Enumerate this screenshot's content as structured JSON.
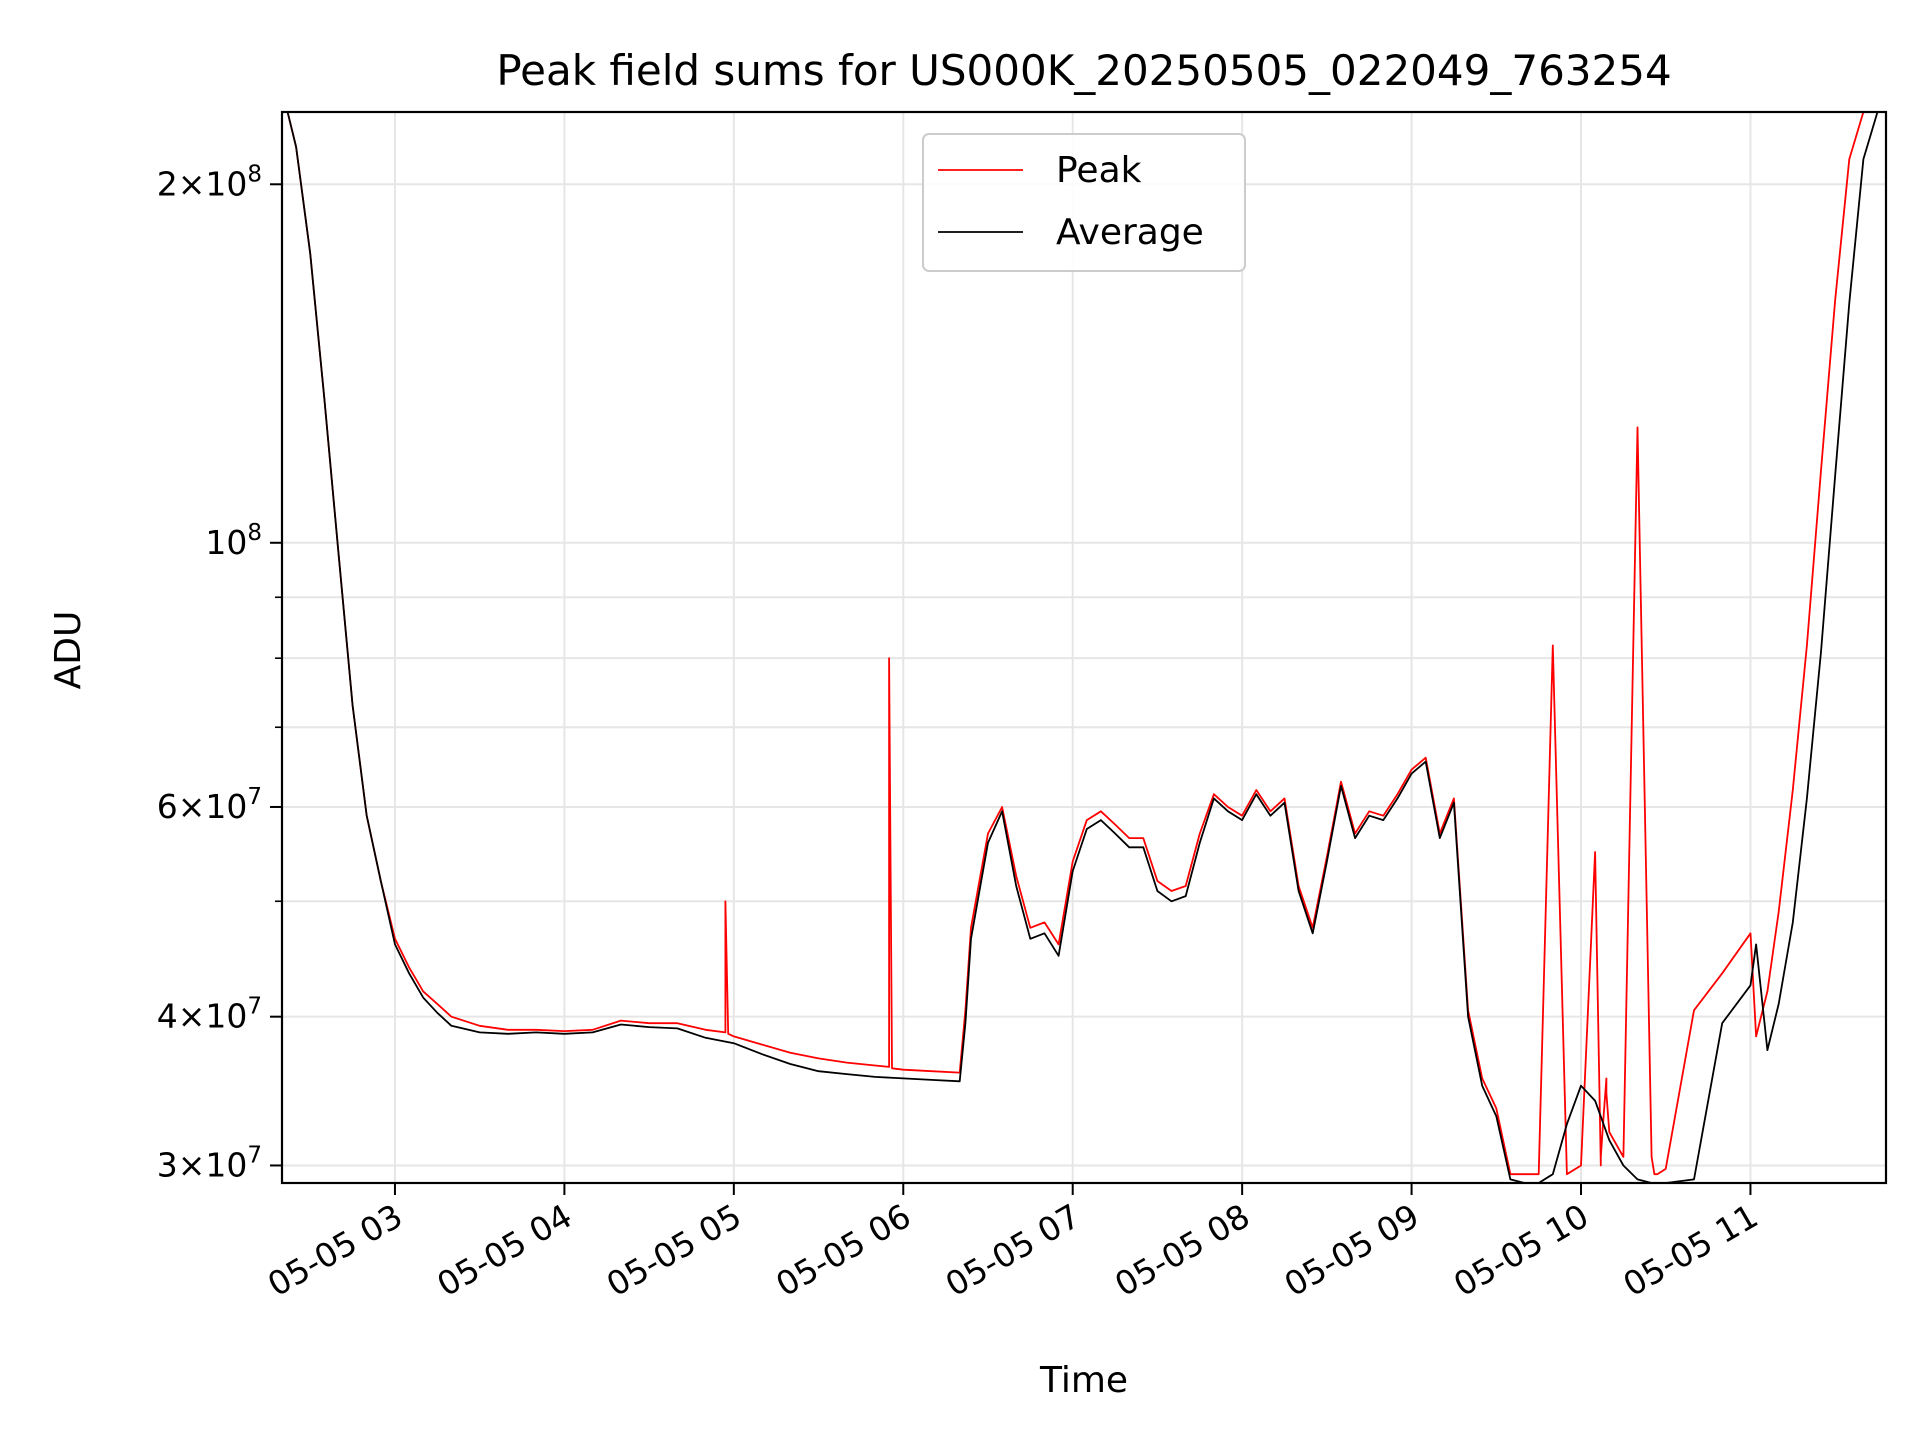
{
  "chart_data": {
    "type": "line",
    "title": "Peak field sums for US000K_20250505_022049_763254",
    "xlabel": "Time",
    "ylabel": "ADU",
    "yscale": "log",
    "ylim": [
      29000000,
      230000000
    ],
    "xlim": [
      "2025-05-05 02:20",
      "2025-05-05 11:48"
    ],
    "grid": true,
    "legend_position": "upper center",
    "x_ticks": [
      "05-05 03",
      "05-05 04",
      "05-05 05",
      "05-05 06",
      "05-05 07",
      "05-05 08",
      "05-05 09",
      "05-05 10",
      "05-05 11"
    ],
    "x_tick_times": [
      "2025-05-05 03:00",
      "2025-05-05 04:00",
      "2025-05-05 05:00",
      "2025-05-05 06:00",
      "2025-05-05 07:00",
      "2025-05-05 08:00",
      "2025-05-05 09:00",
      "2025-05-05 10:00",
      "2025-05-05 11:00"
    ],
    "y_ticks": [
      {
        "value": 200000000,
        "label": "2 × 10^8",
        "mant": "2",
        "exp": "8"
      },
      {
        "value": 100000000,
        "label": "10^8",
        "mant": "",
        "exp": "8"
      },
      {
        "value": 60000000,
        "label": "6 × 10^7",
        "mant": "6",
        "exp": "7"
      },
      {
        "value": 40000000,
        "label": "4 × 10^7",
        "mant": "4",
        "exp": "7"
      },
      {
        "value": 30000000,
        "label": "3 × 10^7",
        "mant": "3",
        "exp": "7"
      }
    ],
    "y_minor_ticks": [
      50000000,
      70000000,
      80000000,
      90000000
    ],
    "series": [
      {
        "name": "Peak",
        "color": "#ff0000",
        "x": [
          "2025-05-05 02:22",
          "2025-05-05 02:25",
          "2025-05-05 02:30",
          "2025-05-05 02:35",
          "2025-05-05 02:40",
          "2025-05-05 02:45",
          "2025-05-05 02:50",
          "2025-05-05 02:55",
          "2025-05-05 03:00",
          "2025-05-05 03:05",
          "2025-05-05 03:10",
          "2025-05-05 03:15",
          "2025-05-05 03:20",
          "2025-05-05 03:30",
          "2025-05-05 03:40",
          "2025-05-05 03:50",
          "2025-05-05 04:00",
          "2025-05-05 04:10",
          "2025-05-05 04:20",
          "2025-05-05 04:30",
          "2025-05-05 04:40",
          "2025-05-05 04:50",
          "2025-05-05 04:57",
          "2025-05-05 04:57",
          "2025-05-05 04:58",
          "2025-05-05 05:00",
          "2025-05-05 05:10",
          "2025-05-05 05:20",
          "2025-05-05 05:30",
          "2025-05-05 05:40",
          "2025-05-05 05:50",
          "2025-05-05 05:55",
          "2025-05-05 05:55",
          "2025-05-05 05:56",
          "2025-05-05 06:00",
          "2025-05-05 06:10",
          "2025-05-05 06:20",
          "2025-05-05 06:22",
          "2025-05-05 06:24",
          "2025-05-05 06:26",
          "2025-05-05 06:30",
          "2025-05-05 06:35",
          "2025-05-05 06:40",
          "2025-05-05 06:45",
          "2025-05-05 06:50",
          "2025-05-05 06:55",
          "2025-05-05 07:00",
          "2025-05-05 07:05",
          "2025-05-05 07:10",
          "2025-05-05 07:15",
          "2025-05-05 07:20",
          "2025-05-05 07:25",
          "2025-05-05 07:30",
          "2025-05-05 07:35",
          "2025-05-05 07:40",
          "2025-05-05 07:45",
          "2025-05-05 07:50",
          "2025-05-05 07:55",
          "2025-05-05 08:00",
          "2025-05-05 08:05",
          "2025-05-05 08:10",
          "2025-05-05 08:15",
          "2025-05-05 08:20",
          "2025-05-05 08:25",
          "2025-05-05 08:30",
          "2025-05-05 08:35",
          "2025-05-05 08:40",
          "2025-05-05 08:45",
          "2025-05-05 08:50",
          "2025-05-05 08:55",
          "2025-05-05 09:00",
          "2025-05-05 09:05",
          "2025-05-05 09:10",
          "2025-05-05 09:15",
          "2025-05-05 09:20",
          "2025-05-05 09:25",
          "2025-05-05 09:30",
          "2025-05-05 09:35",
          "2025-05-05 09:40",
          "2025-05-05 09:45",
          "2025-05-05 09:50",
          "2025-05-05 09:55",
          "2025-05-05 10:00",
          "2025-05-05 10:05",
          "2025-05-05 10:07",
          "2025-05-05 10:07",
          "2025-05-05 10:08",
          "2025-05-05 10:09",
          "2025-05-05 10:09",
          "2025-05-05 10:10",
          "2025-05-05 10:15",
          "2025-05-05 10:20",
          "2025-05-05 10:25",
          "2025-05-05 10:26",
          "2025-05-05 10:26",
          "2025-05-05 10:27",
          "2025-05-05 10:30",
          "2025-05-05 10:40",
          "2025-05-05 10:50",
          "2025-05-05 11:00",
          "2025-05-05 11:02",
          "2025-05-05 11:06",
          "2025-05-05 11:10",
          "2025-05-05 11:15",
          "2025-05-05 11:20",
          "2025-05-05 11:25",
          "2025-05-05 11:30",
          "2025-05-05 11:35",
          "2025-05-05 11:40",
          "2025-05-05 11:45",
          "2025-05-05 11:48"
        ],
        "y": [
          230000000,
          215000000,
          175000000,
          132000000,
          98000000,
          73000000,
          59000000,
          52000000,
          46500000,
          44000000,
          42000000,
          41000000,
          40000000,
          39300000,
          39000000,
          39000000,
          38900000,
          39000000,
          39700000,
          39500000,
          39500000,
          39000000,
          38800000,
          50000000,
          38700000,
          38500000,
          37900000,
          37300000,
          36900000,
          36600000,
          36400000,
          36300000,
          80000000,
          36200000,
          36100000,
          36000000,
          35900000,
          40500000,
          47500000,
          50500000,
          57000000,
          60000000,
          52500000,
          47500000,
          48000000,
          46000000,
          54000000,
          58500000,
          59500000,
          58000000,
          56500000,
          56500000,
          52000000,
          51000000,
          51500000,
          57000000,
          61500000,
          60000000,
          59000000,
          62000000,
          59500000,
          61000000,
          51500000,
          47500000,
          54500000,
          63000000,
          57000000,
          59500000,
          59000000,
          61500000,
          64500000,
          66000000,
          57000000,
          61000000,
          40500000,
          35500000,
          33500000,
          29500000,
          29500000,
          29500000,
          82000000,
          29500000,
          30000000,
          55000000,
          30000000,
          30500000,
          33000000,
          35500000,
          34500000,
          32000000,
          30500000,
          125000000,
          30500000,
          29500000,
          29500000,
          29500000,
          29800000,
          40500000,
          43500000,
          47000000,
          38500000,
          42000000,
          49000000,
          62000000,
          82000000,
          115000000,
          160000000,
          210000000,
          230000000,
          230000000,
          230000000
        ]
      },
      {
        "name": "Average",
        "color": "#000000",
        "x": [
          "2025-05-05 02:22",
          "2025-05-05 02:25",
          "2025-05-05 02:30",
          "2025-05-05 02:35",
          "2025-05-05 02:40",
          "2025-05-05 02:45",
          "2025-05-05 02:50",
          "2025-05-05 02:55",
          "2025-05-05 03:00",
          "2025-05-05 03:05",
          "2025-05-05 03:10",
          "2025-05-05 03:15",
          "2025-05-05 03:20",
          "2025-05-05 03:30",
          "2025-05-05 03:40",
          "2025-05-05 03:50",
          "2025-05-05 04:00",
          "2025-05-05 04:10",
          "2025-05-05 04:20",
          "2025-05-05 04:30",
          "2025-05-05 04:40",
          "2025-05-05 04:50",
          "2025-05-05 05:00",
          "2025-05-05 05:10",
          "2025-05-05 05:20",
          "2025-05-05 05:30",
          "2025-05-05 05:40",
          "2025-05-05 05:50",
          "2025-05-05 06:00",
          "2025-05-05 06:10",
          "2025-05-05 06:20",
          "2025-05-05 06:22",
          "2025-05-05 06:24",
          "2025-05-05 06:26",
          "2025-05-05 06:30",
          "2025-05-05 06:35",
          "2025-05-05 06:40",
          "2025-05-05 06:45",
          "2025-05-05 06:50",
          "2025-05-05 06:55",
          "2025-05-05 07:00",
          "2025-05-05 07:05",
          "2025-05-05 07:10",
          "2025-05-05 07:15",
          "2025-05-05 07:20",
          "2025-05-05 07:25",
          "2025-05-05 07:30",
          "2025-05-05 07:35",
          "2025-05-05 07:40",
          "2025-05-05 07:45",
          "2025-05-05 07:50",
          "2025-05-05 07:55",
          "2025-05-05 08:00",
          "2025-05-05 08:05",
          "2025-05-05 08:10",
          "2025-05-05 08:15",
          "2025-05-05 08:20",
          "2025-05-05 08:25",
          "2025-05-05 08:30",
          "2025-05-05 08:35",
          "2025-05-05 08:40",
          "2025-05-05 08:45",
          "2025-05-05 08:50",
          "2025-05-05 08:55",
          "2025-05-05 09:00",
          "2025-05-05 09:05",
          "2025-05-05 09:10",
          "2025-05-05 09:15",
          "2025-05-05 09:20",
          "2025-05-05 09:25",
          "2025-05-05 09:30",
          "2025-05-05 09:35",
          "2025-05-05 09:40",
          "2025-05-05 09:45",
          "2025-05-05 09:50",
          "2025-05-05 09:55",
          "2025-05-05 10:00",
          "2025-05-05 10:05",
          "2025-05-05 10:10",
          "2025-05-05 10:15",
          "2025-05-05 10:20",
          "2025-05-05 10:25",
          "2025-05-05 10:30",
          "2025-05-05 10:40",
          "2025-05-05 10:50",
          "2025-05-05 11:00",
          "2025-05-05 11:02",
          "2025-05-05 11:06",
          "2025-05-05 11:10",
          "2025-05-05 11:15",
          "2025-05-05 11:20",
          "2025-05-05 11:25",
          "2025-05-05 11:30",
          "2025-05-05 11:35",
          "2025-05-05 11:40",
          "2025-05-05 11:45",
          "2025-05-05 11:48"
        ],
        "y": [
          230000000,
          215000000,
          175000000,
          132000000,
          98000000,
          73000000,
          59000000,
          52000000,
          46000000,
          43500000,
          41500000,
          40300000,
          39300000,
          38800000,
          38700000,
          38800000,
          38700000,
          38800000,
          39400000,
          39200000,
          39100000,
          38400000,
          38000000,
          37200000,
          36500000,
          36000000,
          35800000,
          35600000,
          35500000,
          35400000,
          35300000,
          39500000,
          46500000,
          49500000,
          56000000,
          59500000,
          51500000,
          46500000,
          47000000,
          45000000,
          53000000,
          57500000,
          58500000,
          57000000,
          55500000,
          55500000,
          51000000,
          50000000,
          50500000,
          56000000,
          61000000,
          59500000,
          58500000,
          61500000,
          59000000,
          60500000,
          51000000,
          47000000,
          54000000,
          62500000,
          56500000,
          59000000,
          58500000,
          61000000,
          64000000,
          65500000,
          56500000,
          60500000,
          40000000,
          35000000,
          33000000,
          29200000,
          29000000,
          29000000,
          29500000,
          32500000,
          35000000,
          34000000,
          31500000,
          30000000,
          29200000,
          29000000,
          29000000,
          29200000,
          39500000,
          42500000,
          46000000,
          37500000,
          41000000,
          48000000,
          61000000,
          81000000,
          114000000,
          159000000,
          210000000,
          230000000,
          230000000
        ]
      }
    ]
  }
}
